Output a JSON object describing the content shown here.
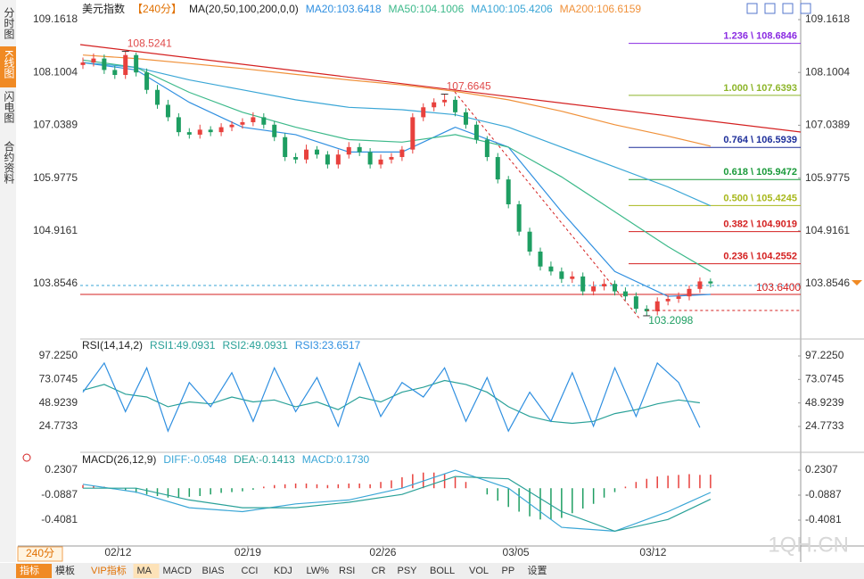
{
  "sidebar": [
    "分时图",
    "K线图",
    "闪电图",
    "合约资料"
  ],
  "toolbar": [
    "指标",
    "模板",
    "VIP指标",
    "MA",
    "MACD",
    "BIAS",
    "CCI",
    "KDJ",
    "LW%",
    "RSI",
    "CR",
    "PSY",
    "BOLL",
    "VOL",
    "PP",
    "设置"
  ],
  "period": "240分",
  "watermark": "1QH.CN",
  "chart_data": [
    {
      "type": "candlestick",
      "title": "美元指数",
      "subtitle": "【240分】",
      "indicator": "MA(20,50,100,200,0,0)",
      "ylim": [
        102.8323,
        109.4666
      ],
      "yticks": [
        109.1618,
        108.1004,
        107.0389,
        105.9775,
        104.9161,
        103.8546
      ],
      "xticks": [
        {
          "value": 3.3,
          "label": "02/12"
        },
        {
          "value": 15.5,
          "label": "02/19"
        },
        {
          "value": 28.2,
          "label": "02/26"
        },
        {
          "value": 40.7,
          "label": "03/05"
        },
        {
          "value": 53.6,
          "label": "03/12"
        }
      ],
      "up_color": "#e8413d",
      "down_color": "#1e9e62",
      "open": [
        108.25,
        108.3,
        108.38,
        108.15,
        108.05,
        108.45,
        108.1,
        107.75,
        107.45,
        107.2,
        106.9,
        106.85,
        106.95,
        106.9,
        107.0,
        107.05,
        107.1,
        107.2,
        107.05,
        106.8,
        106.4,
        106.35,
        106.55,
        106.45,
        106.25,
        106.45,
        106.6,
        106.5,
        106.25,
        106.35,
        106.4,
        106.55,
        107.2,
        107.4,
        107.5,
        107.55,
        107.3,
        107.05,
        106.75,
        106.4,
        105.95,
        105.45,
        104.9,
        104.5,
        104.2,
        104.1,
        103.95,
        104.0,
        103.7,
        103.8,
        103.85,
        103.7,
        103.6,
        103.35,
        103.3,
        103.5,
        103.55,
        103.6,
        103.75,
        103.9
      ],
      "high": [
        108.4,
        108.48,
        108.46,
        108.23,
        108.5241,
        108.5,
        108.18,
        107.85,
        107.55,
        107.28,
        106.98,
        107.05,
        107.02,
        107.08,
        107.12,
        107.18,
        107.3,
        107.28,
        107.12,
        106.88,
        106.48,
        106.65,
        106.62,
        106.52,
        106.55,
        106.7,
        106.68,
        106.58,
        106.45,
        106.48,
        106.62,
        107.28,
        107.48,
        107.58,
        107.6645,
        107.62,
        107.38,
        107.12,
        106.82,
        106.48,
        106.02,
        105.52,
        104.98,
        104.58,
        104.3,
        104.18,
        104.1,
        104.08,
        103.9,
        103.95,
        103.92,
        103.78,
        103.68,
        103.42,
        103.58,
        103.62,
        103.68,
        103.82,
        103.98,
        103.96
      ],
      "low": [
        108.17,
        108.22,
        108.07,
        107.97,
        107.97,
        108.02,
        107.67,
        107.37,
        107.12,
        106.82,
        106.77,
        106.77,
        106.82,
        106.82,
        106.92,
        106.97,
        107.02,
        106.97,
        106.72,
        106.32,
        106.27,
        106.27,
        106.37,
        106.17,
        106.17,
        106.37,
        106.42,
        106.17,
        106.17,
        106.27,
        106.32,
        106.47,
        107.12,
        107.32,
        107.42,
        107.22,
        106.97,
        106.67,
        106.32,
        105.87,
        105.37,
        104.82,
        104.42,
        104.12,
        104.02,
        103.87,
        103.87,
        103.62,
        103.62,
        103.72,
        103.62,
        103.52,
        103.27,
        103.2098,
        103.22,
        103.42,
        103.47,
        103.52,
        103.67,
        103.78
      ],
      "close": [
        108.3,
        108.38,
        108.15,
        108.05,
        108.45,
        108.1,
        107.75,
        107.45,
        107.2,
        106.9,
        106.85,
        106.95,
        106.9,
        107.0,
        107.05,
        107.1,
        107.2,
        107.05,
        106.8,
        106.4,
        106.35,
        106.55,
        106.45,
        106.25,
        106.45,
        106.6,
        106.5,
        106.25,
        106.35,
        106.4,
        106.55,
        107.2,
        107.4,
        107.5,
        107.55,
        107.3,
        107.05,
        106.75,
        106.4,
        105.95,
        105.45,
        104.9,
        104.5,
        104.2,
        104.1,
        103.95,
        104.0,
        103.7,
        103.8,
        103.85,
        103.7,
        103.6,
        103.35,
        103.3,
        103.5,
        103.55,
        103.6,
        103.75,
        103.9,
        103.86
      ],
      "series": [
        {
          "name": "MA20:103.6418",
          "color": "#2f8fe0",
          "x": [
            0,
            5,
            10,
            15,
            20,
            25,
            30,
            35,
            40,
            45,
            50,
            55,
            59
          ],
          "values": [
            108.3,
            108.15,
            107.5,
            107.0,
            106.85,
            106.5,
            106.5,
            107.0,
            106.6,
            105.3,
            104.1,
            103.6,
            103.64
          ]
        },
        {
          "name": "MA50:104.1006",
          "color": "#3cb98a",
          "x": [
            0,
            5,
            10,
            15,
            20,
            25,
            30,
            35,
            40,
            45,
            50,
            55,
            59
          ],
          "values": [
            108.35,
            108.2,
            107.7,
            107.3,
            107.0,
            106.75,
            106.7,
            106.85,
            106.6,
            106.0,
            105.3,
            104.6,
            104.1
          ]
        },
        {
          "name": "MA100:105.4206",
          "color": "#3aa6d6",
          "x": [
            0,
            5,
            10,
            15,
            20,
            25,
            30,
            35,
            40,
            45,
            50,
            55,
            59
          ],
          "values": [
            108.3,
            108.2,
            107.95,
            107.75,
            107.55,
            107.4,
            107.35,
            107.25,
            107.0,
            106.6,
            106.2,
            105.8,
            105.42
          ]
        },
        {
          "name": "MA200:106.6159",
          "color": "#f0913a",
          "x": [
            0,
            5,
            10,
            15,
            20,
            25,
            30,
            35,
            40,
            45,
            50,
            55,
            59
          ],
          "values": [
            108.45,
            108.38,
            108.28,
            108.18,
            108.06,
            107.95,
            107.85,
            107.72,
            107.55,
            107.32,
            107.05,
            106.82,
            106.62
          ]
        }
      ],
      "fib": [
        {
          "value": 108.6846,
          "label": "1.236 \\ 108.6846",
          "color": "#8a2be2"
        },
        {
          "value": 107.6393,
          "label": "1.000 \\ 107.6393",
          "color": "#8db52a"
        },
        {
          "value": 106.5939,
          "label": "0.764 \\ 106.5939",
          "color": "#1e2f9a"
        },
        {
          "value": 105.9472,
          "label": "0.618 \\ 105.9472",
          "color": "#1a9a3a"
        },
        {
          "value": 105.4245,
          "label": "0.500 \\ 105.4245",
          "color": "#a8b81c"
        },
        {
          "value": 104.9019,
          "label": "0.382 \\ 104.9019",
          "color": "#d42020"
        },
        {
          "value": 104.2552,
          "label": "0.236 \\ 104.2552",
          "color": "#d42020"
        }
      ],
      "hline": {
        "value": 103.64,
        "label": "103.6400"
      },
      "annotations": [
        {
          "x": 4,
          "value": 108.5241,
          "label": "108.5241",
          "color": "#e04a4a"
        },
        {
          "x": 34,
          "value": 107.6645,
          "label": "107.6645",
          "color": "#e04a4a"
        },
        {
          "x": 53,
          "value": 103.2098,
          "label": "103.2098",
          "color": "#1e9e62"
        }
      ]
    },
    {
      "type": "line",
      "indicator": "RSI(14,14,2)",
      "extra_labels": [
        "RSI2:49.0931"
      ],
      "ylim": [
        0,
        107.3
      ],
      "yticks": [
        {
          "value": 97.225,
          "label": "97.2250"
        },
        73.0745,
        48.9239,
        24.7733
      ],
      "x": [
        0,
        2,
        4,
        6,
        8,
        10,
        12,
        14,
        16,
        18,
        20,
        22,
        24,
        26,
        28,
        30,
        32,
        34,
        36,
        38,
        40,
        42,
        44,
        46,
        48,
        50,
        52,
        54,
        56,
        58
      ],
      "series": [
        {
          "name": "RSI1:49.0931",
          "color": "#2aa198",
          "values": [
            62,
            68,
            58,
            55,
            45,
            50,
            48,
            55,
            50,
            52,
            45,
            50,
            42,
            55,
            50,
            60,
            65,
            72,
            68,
            60,
            45,
            35,
            30,
            28,
            30,
            38,
            42,
            48,
            52,
            49.0931
          ]
        },
        {
          "name": "RSI3:23.6517",
          "color": "#2f8fe0",
          "values": [
            60,
            90,
            40,
            85,
            20,
            70,
            45,
            80,
            30,
            85,
            40,
            75,
            25,
            90,
            35,
            70,
            55,
            85,
            30,
            75,
            20,
            60,
            30,
            80,
            25,
            85,
            35,
            90,
            70,
            23.6517
          ]
        }
      ]
    },
    {
      "type": "macd",
      "indicator": "MACD(26,12,9)",
      "ylim": [
        -0.739,
        0.3676
      ],
      "yticks": [
        0.2307,
        -0.0887,
        -0.4081
      ],
      "bars": {
        "name": "MACD:0.1730",
        "up_color": "#e8413d",
        "down_color": "#1e9e62",
        "values": [
          0.04,
          0.03,
          0.02,
          0.0,
          -0.03,
          -0.06,
          -0.08,
          -0.1,
          -0.12,
          -0.12,
          -0.11,
          -0.1,
          -0.08,
          -0.06,
          -0.05,
          -0.04,
          -0.02,
          0.02,
          0.04,
          0.05,
          0.06,
          0.06,
          0.05,
          0.04,
          0.05,
          0.06,
          0.06,
          0.05,
          0.08,
          0.1,
          0.14,
          0.18,
          0.2,
          0.2,
          0.18,
          0.14,
          0.08,
          0.0,
          -0.08,
          -0.16,
          -0.24,
          -0.3,
          -0.36,
          -0.4,
          -0.4,
          -0.38,
          -0.32,
          -0.26,
          -0.2,
          -0.12,
          -0.05,
          0.02,
          0.08,
          0.12,
          0.15,
          0.16,
          0.17,
          0.18,
          0.17,
          0.173
        ]
      },
      "series": [
        {
          "name": "DIFF:-0.0548",
          "color": "#3aa6d6",
          "x": [
            0,
            5,
            10,
            15,
            20,
            25,
            30,
            35,
            40,
            45,
            50,
            55,
            59
          ],
          "values": [
            0.05,
            -0.05,
            -0.25,
            -0.3,
            -0.2,
            -0.15,
            0.0,
            0.23,
            0.0,
            -0.5,
            -0.55,
            -0.3,
            -0.0548
          ]
        },
        {
          "name": "DEA:-0.1413",
          "color": "#2aa198",
          "x": [
            0,
            5,
            10,
            15,
            20,
            25,
            30,
            35,
            40,
            45,
            50,
            55,
            59
          ],
          "values": [
            0.0,
            0.0,
            -0.15,
            -0.25,
            -0.25,
            -0.18,
            -0.08,
            0.15,
            0.12,
            -0.3,
            -0.55,
            -0.4,
            -0.1413
          ]
        }
      ]
    }
  ]
}
